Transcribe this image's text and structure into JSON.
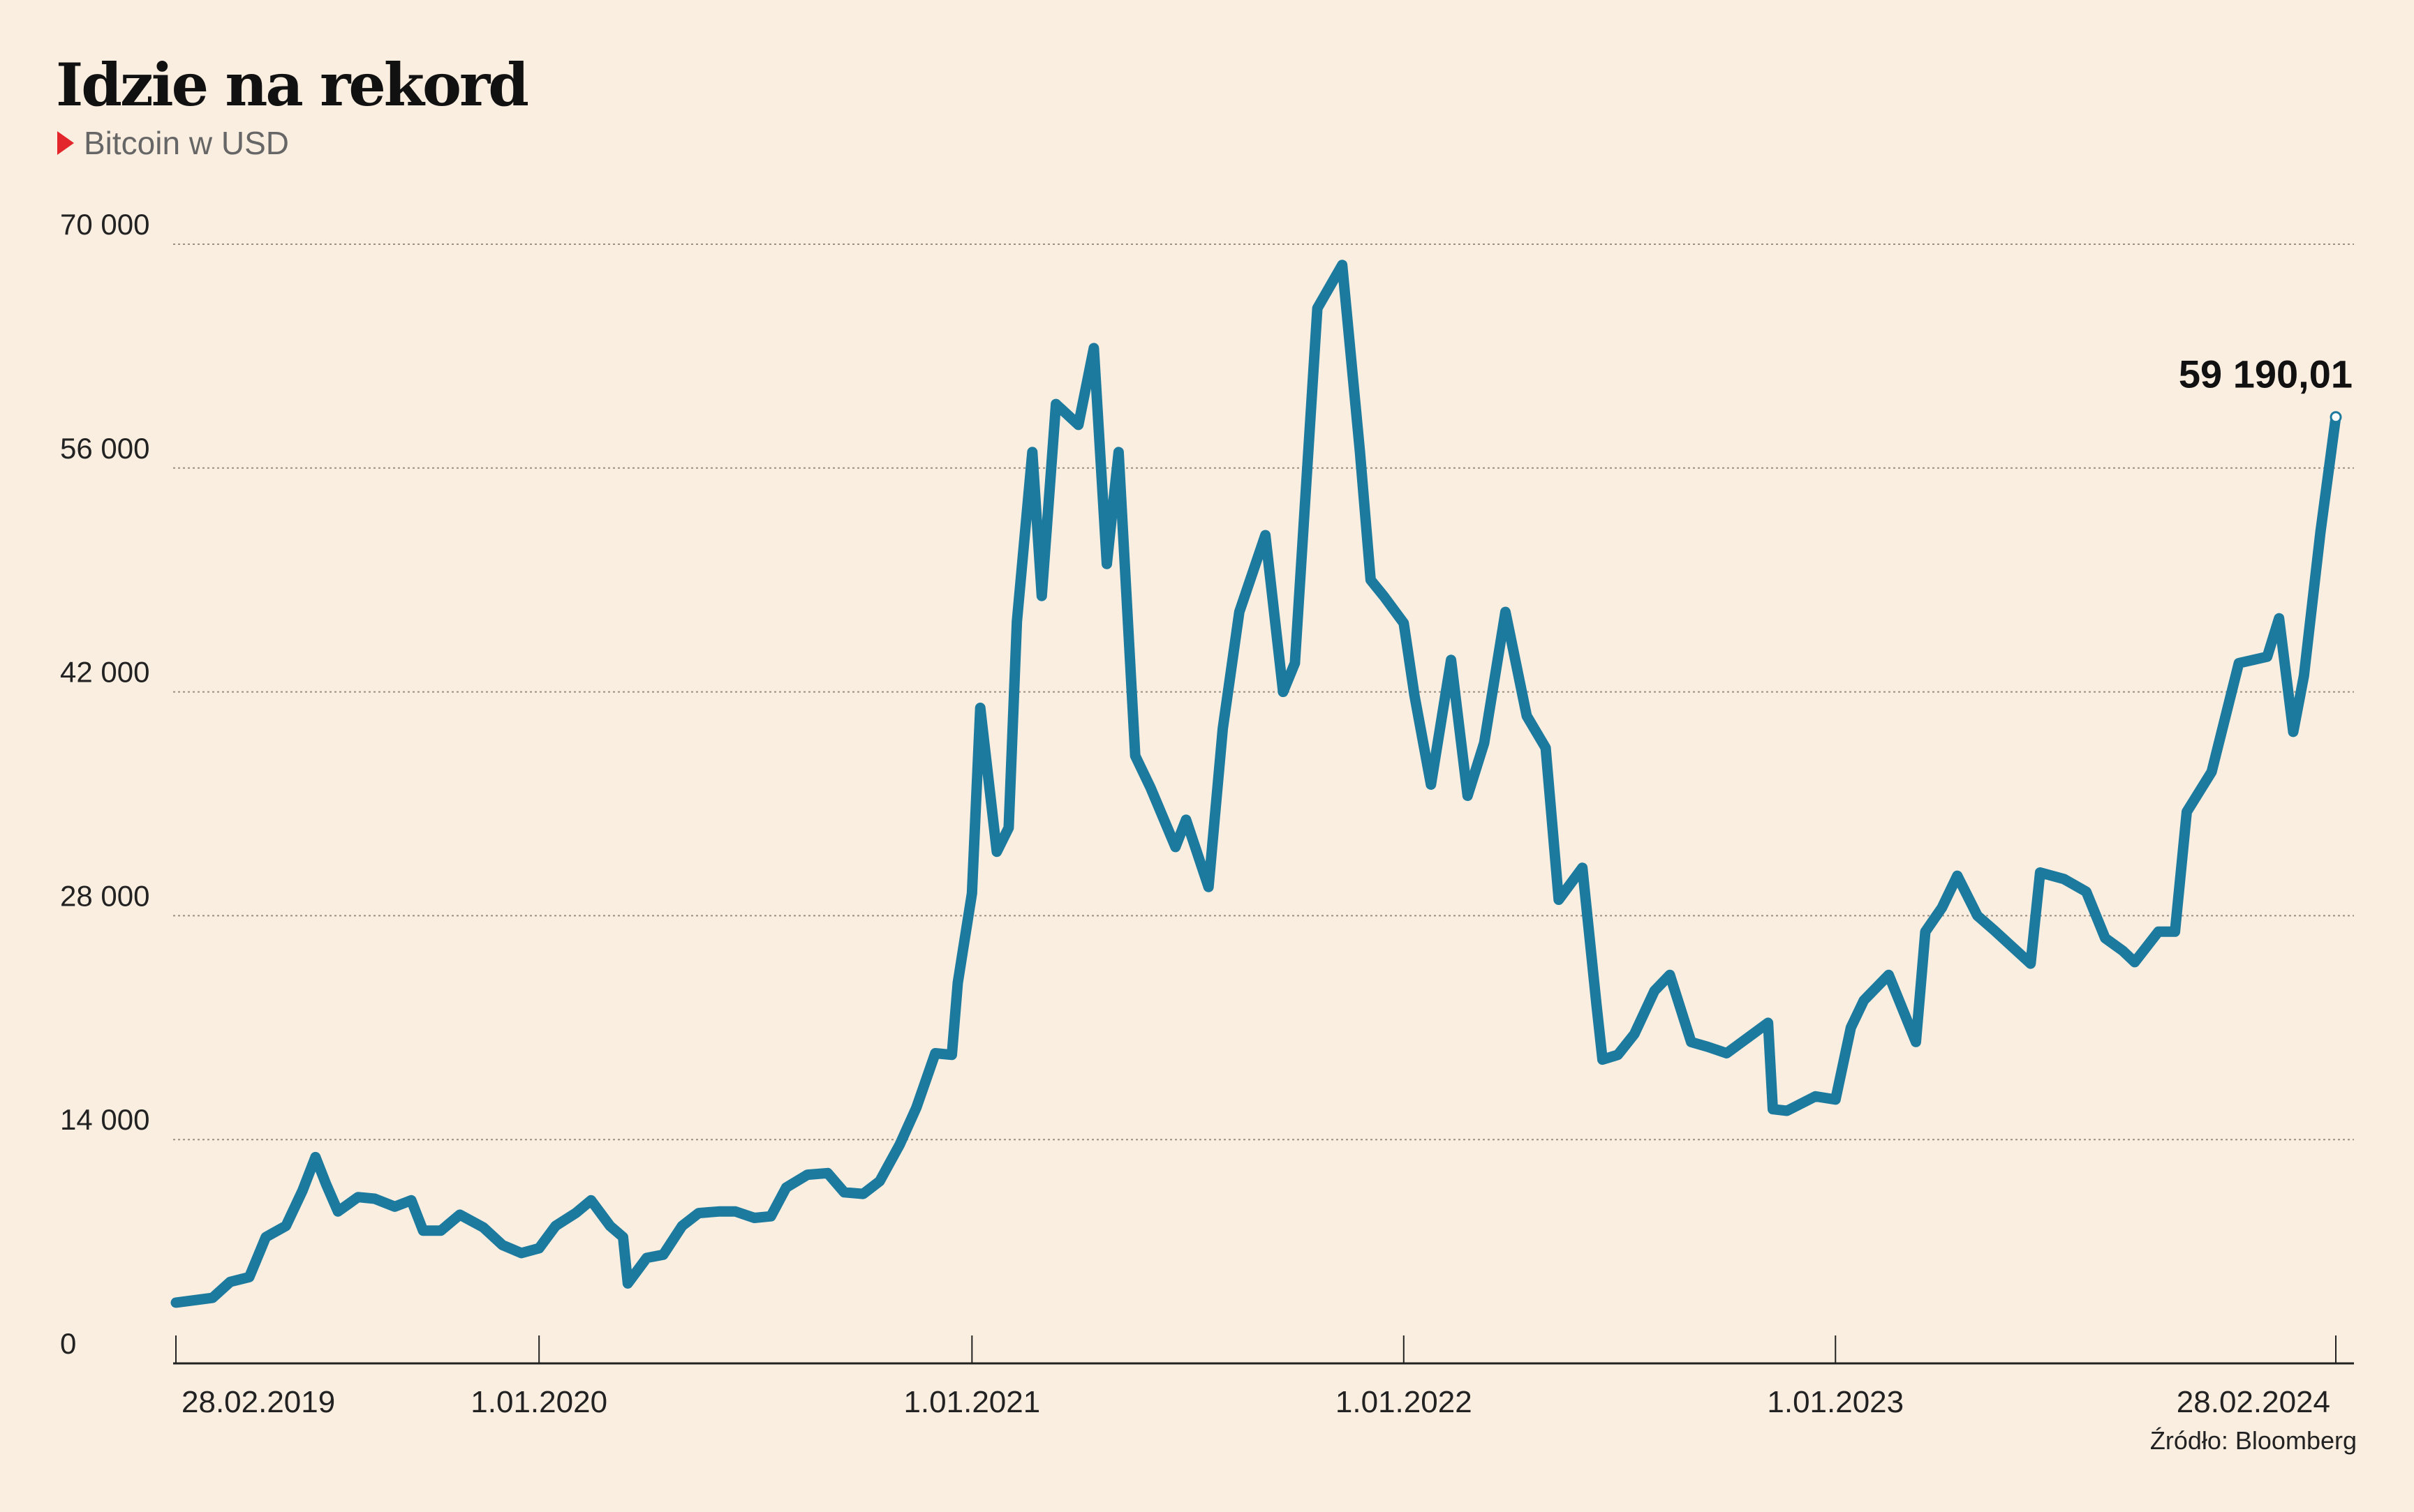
{
  "title": "Idzie na rekord",
  "subtitle": "Bitcoin w USD",
  "source": "Źródło: Bloomberg",
  "colors": {
    "background": "#faeee1",
    "line": "#1b7a9e",
    "accent": "#e3262b",
    "grid": "#9a9086",
    "text": "#222222"
  },
  "chart_data": {
    "type": "line",
    "title": "Idzie na rekord",
    "subtitle": "Bitcoin w USD",
    "xlabel": "",
    "ylabel": "",
    "ylim": [
      0,
      70000
    ],
    "xlim": [
      "2019-02-28",
      "2024-02-28"
    ],
    "yticks": [
      0,
      14000,
      28000,
      42000,
      56000,
      70000
    ],
    "ytick_labels": [
      "0",
      "14 000",
      "28 000",
      "42 000",
      "56 000",
      "70 000"
    ],
    "xticks": [
      "2019-02-28",
      "2020-01-01",
      "2021-01-01",
      "2022-01-01",
      "2023-01-01",
      "2024-02-28"
    ],
    "xtick_labels": [
      "28.02.2019",
      "1.01.2020",
      "1.01.2021",
      "1.01.2022",
      "1.01.2023",
      "28.02.2024"
    ],
    "grid": true,
    "legend": "none",
    "last_value_label": "59 190,01",
    "series": [
      {
        "x": [
          "2019-02-28",
          "2019-03-31",
          "2019-04-15",
          "2019-05-01",
          "2019-05-15",
          "2019-06-01",
          "2019-06-15",
          "2019-06-26",
          "2019-07-05",
          "2019-07-15",
          "2019-08-01",
          "2019-08-15",
          "2019-09-01",
          "2019-09-15",
          "2019-09-25",
          "2019-10-10",
          "2019-10-26",
          "2019-11-15",
          "2019-12-01",
          "2019-12-17",
          "2020-01-01",
          "2020-01-15",
          "2020-02-01",
          "2020-02-14",
          "2020-03-01",
          "2020-03-12",
          "2020-03-16",
          "2020-04-01",
          "2020-04-15",
          "2020-05-01",
          "2020-05-15",
          "2020-06-01",
          "2020-06-15",
          "2020-07-01",
          "2020-07-15",
          "2020-07-28",
          "2020-08-15",
          "2020-09-01",
          "2020-09-15",
          "2020-10-01",
          "2020-10-15",
          "2020-11-01",
          "2020-11-15",
          "2020-12-01",
          "2020-12-15",
          "2020-12-20",
          "2021-01-01",
          "2021-01-08",
          "2021-01-22",
          "2021-02-01",
          "2021-02-08",
          "2021-02-21",
          "2021-03-01",
          "2021-03-13",
          "2021-04-01",
          "2021-04-14",
          "2021-04-25",
          "2021-05-05",
          "2021-05-19",
          "2021-06-01",
          "2021-06-22",
          "2021-07-01",
          "2021-07-20",
          "2021-08-01",
          "2021-08-15",
          "2021-09-06",
          "2021-09-21",
          "2021-10-01",
          "2021-10-20",
          "2021-11-10",
          "2021-11-25",
          "2021-12-04",
          "2021-12-15",
          "2022-01-01",
          "2022-01-10",
          "2022-01-24",
          "2022-02-10",
          "2022-02-24",
          "2022-03-10",
          "2022-03-28",
          "2022-04-15",
          "2022-05-01",
          "2022-05-12",
          "2022-06-01",
          "2022-06-13",
          "2022-06-18",
          "2022-07-01",
          "2022-07-15",
          "2022-08-01",
          "2022-08-14",
          "2022-09-01",
          "2022-09-15",
          "2022-10-01",
          "2022-10-25",
          "2022-11-05",
          "2022-11-09",
          "2022-11-21",
          "2022-12-15",
          "2023-01-01",
          "2023-01-14",
          "2023-01-25",
          "2023-02-15",
          "2023-03-10",
          "2023-03-18",
          "2023-04-01",
          "2023-04-14",
          "2023-05-01",
          "2023-05-15",
          "2023-06-15",
          "2023-06-23",
          "2023-07-13",
          "2023-08-01",
          "2023-08-17",
          "2023-09-01",
          "2023-09-11",
          "2023-10-01",
          "2023-10-15",
          "2023-10-25",
          "2023-11-15",
          "2023-12-08",
          "2024-01-01",
          "2024-01-11",
          "2024-01-23",
          "2024-02-01",
          "2024-02-15",
          "2024-02-28"
        ],
        "values": [
          3800,
          4100,
          5100,
          5400,
          7900,
          8600,
          10800,
          12900,
          11200,
          9500,
          10400,
          10300,
          9800,
          10200,
          8300,
          8300,
          9300,
          8500,
          7400,
          6900,
          7200,
          8600,
          9400,
          10200,
          8600,
          7900,
          5000,
          6600,
          6800,
          8600,
          9400,
          9500,
          9500,
          9100,
          9200,
          11000,
          11800,
          11900,
          10700,
          10600,
          11400,
          13700,
          16000,
          19400,
          19300,
          23800,
          29400,
          41000,
          32000,
          33500,
          46400,
          57000,
          48000,
          60000,
          58700,
          63500,
          50000,
          57000,
          38000,
          36000,
          32300,
          34000,
          29800,
          39700,
          47000,
          51800,
          42000,
          43800,
          66000,
          68700,
          57000,
          49000,
          48000,
          46300,
          41800,
          36200,
          44000,
          35500,
          38800,
          47000,
          40500,
          38500,
          29000,
          31000,
          22400,
          19000,
          19300,
          20600,
          23300,
          24300,
          20100,
          19800,
          19400,
          20700,
          21300,
          15900,
          15800,
          16700,
          16500,
          21000,
          22700,
          24300,
          20100,
          27000,
          28500,
          30500,
          28000,
          27100,
          25000,
          30700,
          30300,
          29500,
          26600,
          25800,
          25100,
          27000,
          27000,
          34500,
          37000,
          43800,
          44200,
          46600,
          39500,
          43000,
          52000,
          59190.01
        ]
      }
    ]
  }
}
